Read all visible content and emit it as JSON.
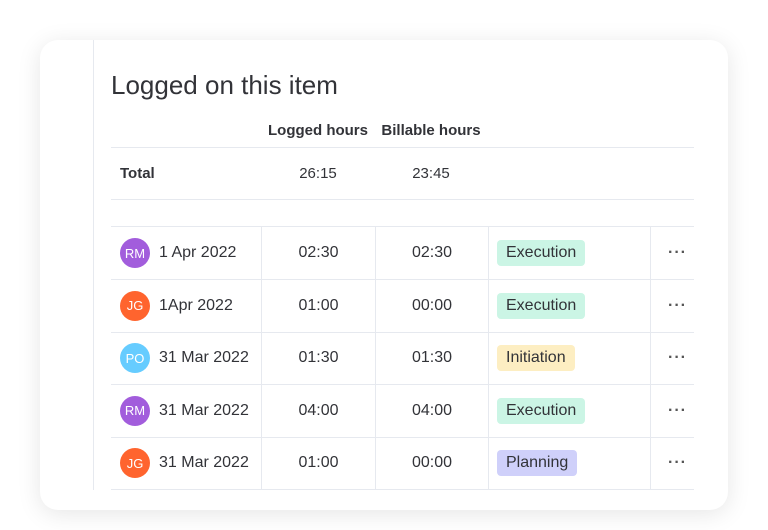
{
  "title": "Logged on this item",
  "headers": {
    "logged": "Logged hours",
    "billable": "Billable hours"
  },
  "total": {
    "label": "Total",
    "logged": "26:15",
    "billable": "23:45"
  },
  "rows": [
    {
      "initials": "RM",
      "avatar_color": "#a25ddc",
      "date": "1 Apr 2022",
      "logged": "02:30",
      "billable": "02:30",
      "phase": "Execution",
      "phase_color": "#cbf5e5"
    },
    {
      "initials": "JG",
      "avatar_color": "#ff642e",
      "date": "1Apr 2022",
      "logged": "01:00",
      "billable": "00:00",
      "phase": "Execution",
      "phase_color": "#cbf5e5"
    },
    {
      "initials": "PO",
      "avatar_color": "#66ccff",
      "date": "31 Mar 2022",
      "logged": "01:30",
      "billable": "01:30",
      "phase": "Initiation",
      "phase_color": "#fdeec2"
    },
    {
      "initials": "RM",
      "avatar_color": "#a25ddc",
      "date": "31 Mar 2022",
      "logged": "04:00",
      "billable": "04:00",
      "phase": "Execution",
      "phase_color": "#cbf5e5"
    },
    {
      "initials": "JG",
      "avatar_color": "#ff642e",
      "date": "31 Mar 2022",
      "logged": "01:00",
      "billable": "00:00",
      "phase": "Planning",
      "phase_color": "#cfd0fa"
    }
  ],
  "more_icon": "···"
}
